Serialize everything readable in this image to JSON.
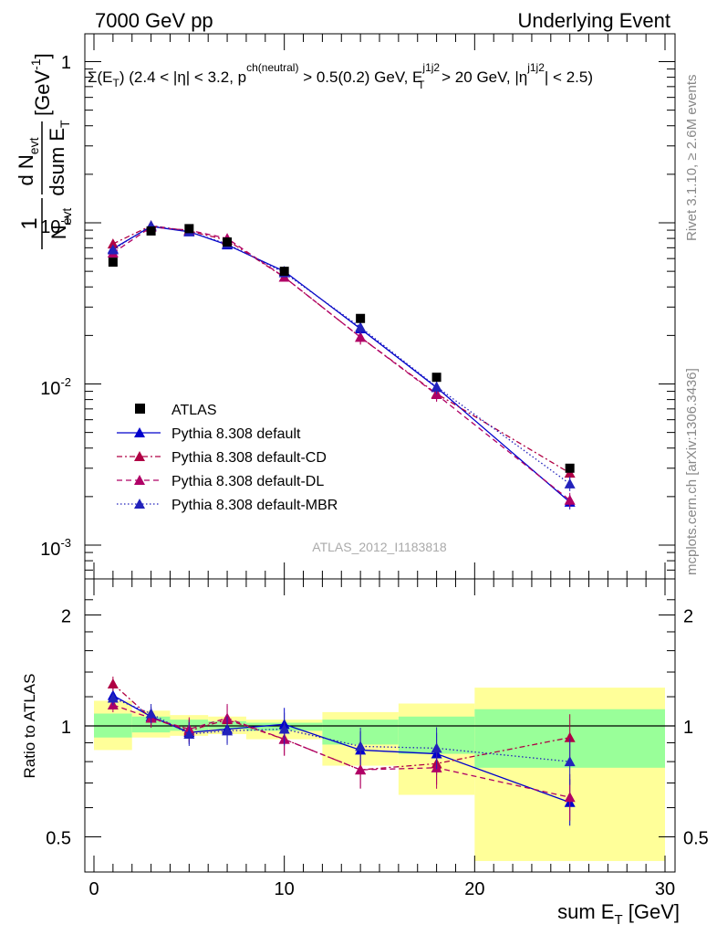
{
  "header": {
    "left": "7000 GeV pp",
    "right": "Underlying Event"
  },
  "side_labels": {
    "top": "Rivet 3.1.10, ≥ 2.6M events",
    "bottom": "mcplots.cern.ch [arXiv:1306.3436]"
  },
  "watermark": "ATLAS_2012_I1183818",
  "colors": {
    "data": "#000000",
    "default": "#0000cc",
    "default_cd": "#b00044",
    "default_dl": "#b00066",
    "default_mbr": "#2222bb",
    "band_outer": "#ffff99",
    "band_inner": "#99ff99"
  },
  "chart_data": [
    {
      "type": "scatter",
      "panel": "main",
      "title": "Σ(E_T) (2.4 < |η| < 3.2, p^ch(neutral) > 0.5(0.2) GeV, E_T^j1j2 > 20 GeV, |η^j1j2| < 2.5)",
      "ylabel": "1/N_evt dN_evt/dsum E_T [GeV^-1]",
      "yscale": "log",
      "ylim": [
        0.0008,
        1.5
      ],
      "xlim": [
        -1,
        30.5
      ],
      "ytick_labels": [
        "10^-3",
        "10^-2",
        "10^-1",
        "1"
      ],
      "x": [
        1,
        3,
        5,
        7,
        10,
        14,
        18,
        25
      ],
      "series": [
        {
          "name": "ATLAS",
          "marker": "square",
          "values": [
            0.057,
            0.089,
            0.092,
            0.076,
            0.05,
            0.0255,
            0.011,
            0.003
          ]
        },
        {
          "name": "Pythia 8.308 default",
          "marker": "triangle",
          "line": "solid",
          "values": [
            0.069,
            0.095,
            0.088,
            0.073,
            0.05,
            0.022,
            0.0095,
            0.00185
          ]
        },
        {
          "name": "Pythia 8.308 default-CD",
          "marker": "triangle",
          "line": "dashdot",
          "values": [
            0.074,
            0.096,
            0.089,
            0.078,
            0.046,
            0.0195,
            0.0087,
            0.0028
          ]
        },
        {
          "name": "Pythia 8.308 default-DL",
          "marker": "triangle",
          "line": "dashed",
          "values": [
            0.065,
            0.094,
            0.09,
            0.08,
            0.046,
            0.0195,
            0.0086,
            0.0019
          ]
        },
        {
          "name": "Pythia 8.308 default-MBR",
          "marker": "triangle",
          "line": "dotted",
          "values": [
            0.068,
            0.096,
            0.088,
            0.074,
            0.049,
            0.0225,
            0.0096,
            0.0024
          ]
        }
      ]
    },
    {
      "type": "line",
      "panel": "ratio",
      "ylabel": "Ratio to ATLAS",
      "xlabel": "sum E_T [GeV]",
      "ylim": [
        0.4,
        2.5
      ],
      "yscale": "log",
      "xlim": [
        -1,
        30.5
      ],
      "ytick_labels": [
        "0.5",
        "1",
        "2"
      ],
      "xtick_labels": [
        "0",
        "10",
        "20",
        "30"
      ],
      "x": [
        1,
        3,
        5,
        7,
        10,
        14,
        18,
        25
      ],
      "bins": [
        [
          0,
          2
        ],
        [
          2,
          4
        ],
        [
          4,
          6
        ],
        [
          6,
          8
        ],
        [
          8,
          12
        ],
        [
          12,
          16
        ],
        [
          16,
          20
        ],
        [
          20,
          30
        ]
      ],
      "band_outer": [
        [
          0.86,
          1.17
        ],
        [
          0.93,
          1.1
        ],
        [
          0.94,
          1.07
        ],
        [
          0.95,
          1.06
        ],
        [
          0.92,
          1.04
        ],
        [
          0.78,
          1.09
        ],
        [
          0.65,
          1.15
        ],
        [
          0.43,
          1.27
        ]
      ],
      "band_inner": [
        [
          0.93,
          1.08
        ],
        [
          0.96,
          1.06
        ],
        [
          0.97,
          1.04
        ],
        [
          0.98,
          1.03
        ],
        [
          0.97,
          1.02
        ],
        [
          0.89,
          1.04
        ],
        [
          0.84,
          1.06
        ],
        [
          0.77,
          1.11
        ]
      ],
      "series": [
        {
          "name": "Pythia 8.308 default",
          "values": [
            1.21,
            1.06,
            0.96,
            0.98,
            1.01,
            0.86,
            0.84,
            0.62
          ]
        },
        {
          "name": "Pythia 8.308 default-CD",
          "values": [
            1.3,
            1.05,
            0.97,
            1.04,
            0.92,
            0.76,
            0.79,
            0.93
          ]
        },
        {
          "name": "Pythia 8.308 default-DL",
          "values": [
            1.14,
            1.05,
            0.98,
            1.05,
            0.92,
            0.76,
            0.77,
            0.64
          ]
        },
        {
          "name": "Pythia 8.308 default-MBR",
          "values": [
            1.19,
            1.08,
            0.95,
            0.97,
            0.98,
            0.88,
            0.87,
            0.8
          ]
        }
      ]
    }
  ]
}
